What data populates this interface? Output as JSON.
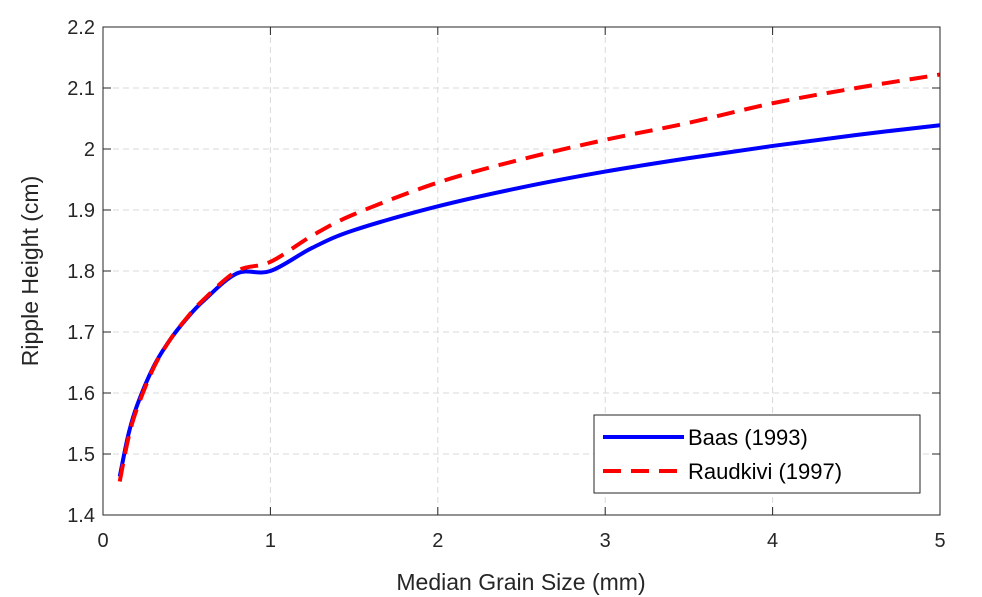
{
  "chart_data": {
    "type": "line",
    "title": "",
    "xlabel": "Median Grain Size (mm)",
    "ylabel": "Ripple Height (cm)",
    "xlim": [
      0,
      5
    ],
    "ylim": [
      1.4,
      2.2
    ],
    "xticks": [
      0,
      1,
      2,
      3,
      4,
      5
    ],
    "xtick_labels": [
      "0",
      "1",
      "2",
      "3",
      "4",
      "5"
    ],
    "yticks": [
      1.4,
      1.5,
      1.6,
      1.7,
      1.8,
      1.9,
      2.0,
      2.1,
      2.2
    ],
    "ytick_labels": [
      "1.4",
      "1.5",
      "1.6",
      "1.7",
      "1.8",
      "1.9",
      "2",
      "2.1",
      "2.2"
    ],
    "grid": true,
    "legend_position": "bottom-right",
    "series": [
      {
        "name": "Baas (1993)",
        "color": "#0000ff",
        "style": "solid",
        "x": [
          0.1,
          0.15,
          0.2,
          0.3,
          0.4,
          0.5,
          0.6,
          0.8,
          1.0,
          1.25,
          1.5,
          2.0,
          2.5,
          3.0,
          3.5,
          4.0,
          4.5,
          5.0
        ],
        "y": [
          1.463,
          1.53,
          1.577,
          1.642,
          1.687,
          1.722,
          1.751,
          1.796,
          1.8,
          1.838,
          1.867,
          1.906,
          1.937,
          1.963,
          1.985,
          2.005,
          2.023,
          2.039
        ]
      },
      {
        "name": "Raudkivi (1997)",
        "color": "#ff0000",
        "style": "dashed",
        "x": [
          0.1,
          0.15,
          0.2,
          0.3,
          0.4,
          0.5,
          0.6,
          0.8,
          1.0,
          1.25,
          1.5,
          2.0,
          2.5,
          3.0,
          3.5,
          4.0,
          4.5,
          5.0
        ],
        "y": [
          1.455,
          1.524,
          1.572,
          1.64,
          1.687,
          1.723,
          1.753,
          1.8,
          1.815,
          1.858,
          1.893,
          1.945,
          1.983,
          2.015,
          2.043,
          2.075,
          2.1,
          2.122
        ]
      }
    ]
  }
}
